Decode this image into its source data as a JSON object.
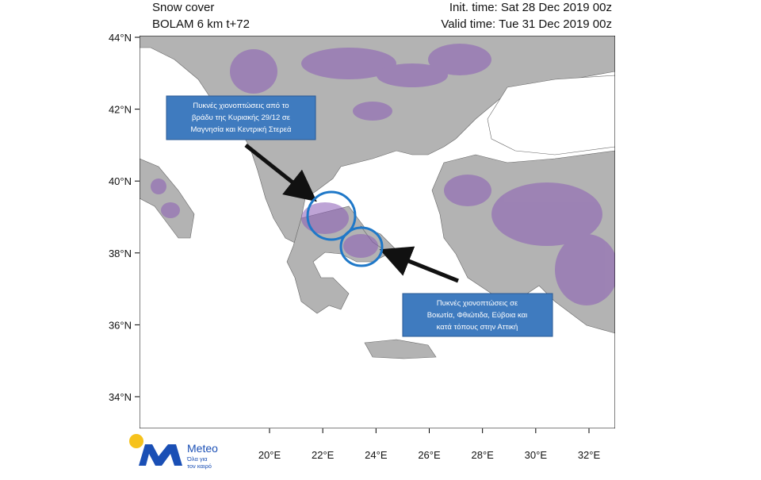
{
  "header": {
    "title": "Snow cover",
    "model": "BOLAM 6 km t+72",
    "init_time": "Init. time: Sat 28 Dec 2019 00z",
    "valid_time": "Valid time: Tue 31 Dec 2019 00z"
  },
  "axes": {
    "lat_ticks": [
      {
        "value": 44,
        "label": "44°N"
      },
      {
        "value": 42,
        "label": "42°N"
      },
      {
        "value": 40,
        "label": "40°N"
      },
      {
        "value": 38,
        "label": "38°N"
      },
      {
        "value": 36,
        "label": "36°N"
      },
      {
        "value": 34,
        "label": "34°N"
      }
    ],
    "lon_ticks": [
      {
        "value": 20,
        "label": "20°E"
      },
      {
        "value": 22,
        "label": "22°E"
      },
      {
        "value": 24,
        "label": "24°E"
      },
      {
        "value": 26,
        "label": "26°E"
      },
      {
        "value": 28,
        "label": "28°E"
      },
      {
        "value": 30,
        "label": "30°E"
      },
      {
        "value": 32,
        "label": "32°E"
      }
    ]
  },
  "annotations": [
    {
      "lines": [
        "Πυκνές χιονοπτώσεις από το",
        "βράδυ της Κυριακής 29/12 σε",
        "Μαγνησία και Κεντρική Στερεά"
      ]
    },
    {
      "lines": [
        "Πυκνές χιονοπτώσεις σε",
        "Βοιωτία, Φθιώτιδα, Εύβοια και",
        "κατά τόπους στην Αττική"
      ]
    }
  ],
  "logo": {
    "name": "Meteo",
    "tagline": [
      "Όλα για",
      "τον καιρό"
    ]
  }
}
